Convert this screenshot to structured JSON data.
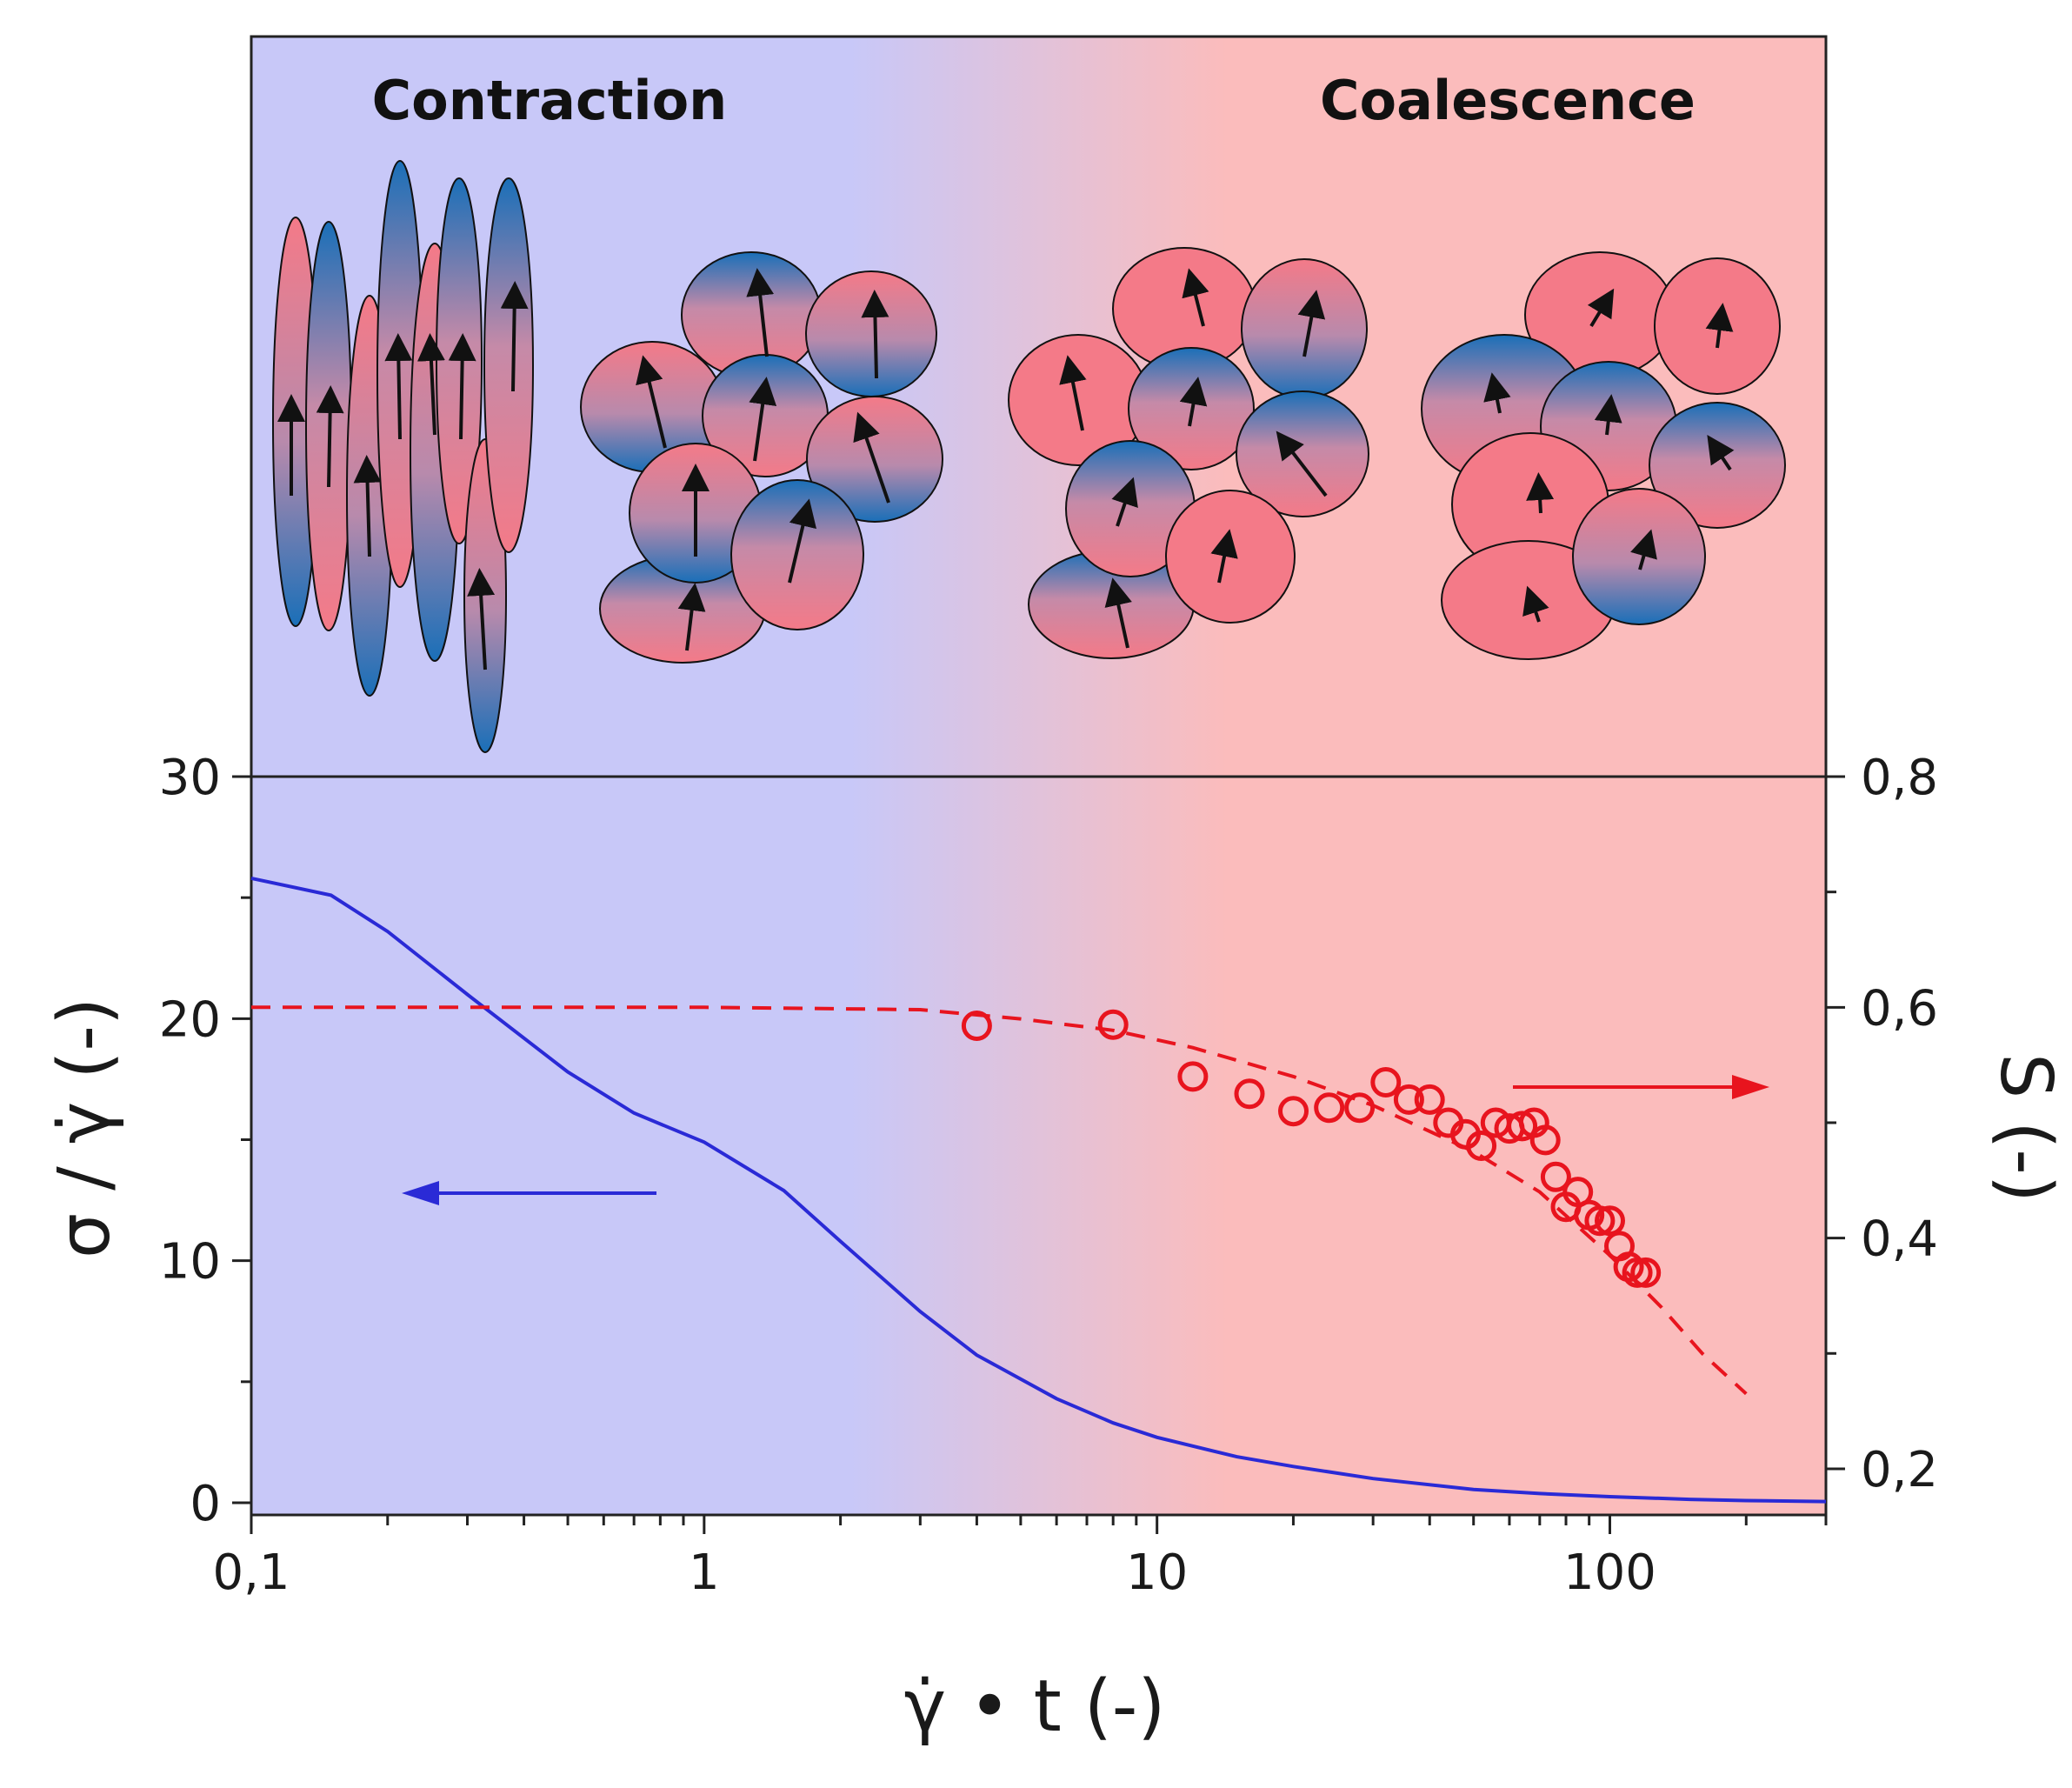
{
  "phases": {
    "left": "Contraction",
    "right": "Coalescence"
  },
  "colors": {
    "blue_bg": "#c8c8f8",
    "red_bg": "#fbbcbc",
    "stress_line": "#2a2ad6",
    "order_points": "#e8141e",
    "particle_blue": "#1a6fb8",
    "particle_pink": "#f47a88"
  },
  "chart_data": {
    "type": "line",
    "x": {
      "label": "γ̇ • t (-)",
      "scale": "log",
      "range": [
        0.1,
        300
      ],
      "ticks": [
        "0,1",
        "1",
        "10",
        "100"
      ]
    },
    "y_left": {
      "label": "σ / γ̇ (-)",
      "range": [
        0,
        30
      ],
      "ticks": [
        "0",
        "10",
        "20",
        "30"
      ]
    },
    "y_right": {
      "label": "S (-)",
      "range": [
        0.16,
        0.8
      ],
      "ticks": [
        "0,2",
        "0,4",
        "0,6",
        "0,8"
      ]
    },
    "series": [
      {
        "kind": "line",
        "axis": "left",
        "color": "#2a2ad6",
        "points": [
          [
            0.1,
            25.8
          ],
          [
            0.15,
            25.1
          ],
          [
            0.2,
            23.6
          ],
          [
            0.3,
            21.0
          ],
          [
            0.5,
            17.8
          ],
          [
            0.7,
            16.1
          ],
          [
            1.0,
            14.9
          ],
          [
            1.5,
            12.9
          ],
          [
            2.0,
            10.8
          ],
          [
            3.0,
            7.9
          ],
          [
            4.0,
            6.1
          ],
          [
            6.0,
            4.3
          ],
          [
            8.0,
            3.3
          ],
          [
            10.0,
            2.7
          ],
          [
            15.0,
            1.9
          ],
          [
            20.0,
            1.5
          ],
          [
            30.0,
            1.0
          ],
          [
            50.0,
            0.55
          ],
          [
            70.0,
            0.38
          ],
          [
            100.0,
            0.25
          ],
          [
            150.0,
            0.14
          ],
          [
            200.0,
            0.09
          ],
          [
            300.0,
            0.05
          ]
        ]
      },
      {
        "kind": "dashed",
        "axis": "right",
        "color": "#e8141e",
        "points": [
          [
            0.1,
            0.6
          ],
          [
            1.0,
            0.6
          ],
          [
            3.0,
            0.598
          ],
          [
            5.0,
            0.59
          ],
          [
            8.0,
            0.58
          ],
          [
            12.0,
            0.565
          ],
          [
            20.0,
            0.54
          ],
          [
            30.0,
            0.515
          ],
          [
            50.0,
            0.475
          ],
          [
            70.0,
            0.44
          ],
          [
            100.0,
            0.385
          ],
          [
            130.0,
            0.34
          ],
          [
            160.0,
            0.3
          ],
          [
            200.0,
            0.265
          ]
        ]
      },
      {
        "kind": "scatter",
        "axis": "right",
        "color": "#e8141e",
        "points": [
          [
            4.0,
            0.584
          ],
          [
            8.0,
            0.585
          ],
          [
            12.0,
            0.54
          ],
          [
            16.0,
            0.525
          ],
          [
            20.0,
            0.51
          ],
          [
            24.0,
            0.513
          ],
          [
            28.0,
            0.513
          ],
          [
            32.0,
            0.535
          ],
          [
            36.0,
            0.52
          ],
          [
            40.0,
            0.52
          ],
          [
            44.0,
            0.5
          ],
          [
            48.0,
            0.49
          ],
          [
            52.0,
            0.48
          ],
          [
            56.0,
            0.5
          ],
          [
            60.0,
            0.495
          ],
          [
            64.0,
            0.497
          ],
          [
            68.0,
            0.5
          ],
          [
            72.0,
            0.485
          ],
          [
            76.0,
            0.453
          ],
          [
            80.0,
            0.427
          ],
          [
            85.0,
            0.44
          ],
          [
            90.0,
            0.42
          ],
          [
            95.0,
            0.415
          ],
          [
            100.0,
            0.415
          ],
          [
            105.0,
            0.393
          ],
          [
            110.0,
            0.375
          ],
          [
            115.0,
            0.37
          ],
          [
            120.0,
            0.37
          ]
        ]
      }
    ],
    "annotations": [
      {
        "type": "arrow",
        "direction": "left",
        "points_to": "left axis",
        "color": "#2a2ad6"
      },
      {
        "type": "arrow",
        "direction": "right",
        "points_to": "right axis",
        "color": "#e8141e"
      }
    ]
  }
}
